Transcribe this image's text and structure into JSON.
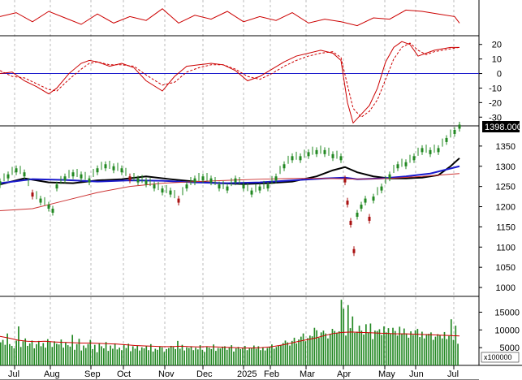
{
  "chart_data": [
    {
      "panel": "oscillator-top",
      "type": "line",
      "x": [
        0,
        20,
        40,
        60,
        80,
        100,
        120,
        140,
        160,
        180,
        200,
        220,
        240,
        260,
        280,
        300,
        320,
        340,
        360,
        380,
        400,
        420,
        440,
        460,
        480,
        500,
        520,
        540,
        560,
        566
      ],
      "series": [
        {
          "color": "#cc0000",
          "values": [
            0.55,
            0.7,
            0.35,
            0.75,
            0.5,
            0.25,
            0.65,
            0.3,
            0.55,
            0.4,
            0.85,
            0.3,
            0.6,
            0.45,
            0.75,
            0.35,
            0.55,
            0.4,
            0.7,
            0.3,
            0.45,
            0.35,
            0.2,
            0.5,
            0.45,
            0.8,
            0.75,
            0.65,
            0.55,
            0.3
          ]
        }
      ],
      "ylim": [
        0,
        1
      ]
    },
    {
      "panel": "macd",
      "type": "line",
      "x": [
        0,
        15,
        30,
        45,
        60,
        70,
        85,
        100,
        110,
        120,
        135,
        150,
        165,
        180,
        200,
        215,
        230,
        245,
        260,
        275,
        290,
        305,
        320,
        335,
        350,
        365,
        380,
        395,
        410,
        420,
        428,
        435,
        445,
        455,
        465,
        475,
        485,
        495,
        505,
        515,
        525,
        535,
        545,
        555,
        566
      ],
      "y_ticks": [
        -30,
        -20,
        -10,
        0,
        10,
        20
      ],
      "ylim": [
        -36,
        26
      ],
      "series": [
        {
          "name": "",
          "color": "#cc0000",
          "dash": "solid",
          "values": [
            0,
            1,
            -5,
            -9,
            -14,
            -10,
            0,
            7,
            9,
            8,
            5,
            7,
            4,
            -5,
            -12,
            -2,
            5,
            6,
            7,
            6,
            2,
            -5,
            -2,
            3,
            8,
            12,
            14,
            16,
            14,
            9,
            -20,
            -34,
            -28,
            -22,
            -10,
            8,
            18,
            22,
            20,
            12,
            14,
            16,
            17,
            18,
            18
          ]
        },
        {
          "name": "",
          "color": "#cc0000",
          "dash": "dashed",
          "values": [
            2,
            -2,
            -3,
            -7,
            -11,
            -12,
            -4,
            3,
            7,
            8,
            6,
            6,
            5,
            -1,
            -8,
            -6,
            1,
            4,
            6,
            6,
            3,
            -2,
            -4,
            0,
            5,
            9,
            12,
            14,
            15,
            11,
            -8,
            -24,
            -30,
            -26,
            -18,
            -4,
            10,
            18,
            21,
            16,
            13,
            15,
            16,
            17,
            18
          ]
        }
      ],
      "baseline": 0
    },
    {
      "panel": "price",
      "type": "line",
      "x_labels": [
        "Jul",
        "Aug",
        "Sep",
        "Oct",
        "Nov",
        "Dec",
        "2025",
        "Feb",
        "Mar",
        "Apr",
        "May",
        "Jun",
        "Jul"
      ],
      "y_ticks": [
        1000,
        1050,
        1100,
        1150,
        1200,
        1250,
        1300,
        1350
      ],
      "ylim": [
        978,
        1400
      ],
      "last_price_label": "1398.000",
      "last_price": 1398,
      "series": [
        {
          "name": "",
          "color": "#228822",
          "type": "ohlc",
          "x": [
            0,
            10,
            20,
            30,
            40,
            50,
            60,
            65,
            70,
            80,
            90,
            100,
            110,
            120,
            130,
            140,
            150,
            160,
            170,
            180,
            190,
            200,
            210,
            220,
            230,
            240,
            250,
            260,
            270,
            280,
            290,
            300,
            310,
            320,
            330,
            340,
            350,
            360,
            370,
            380,
            390,
            400,
            410,
            420,
            425,
            428,
            432,
            436,
            440,
            445,
            450,
            455,
            460,
            470,
            480,
            490,
            500,
            510,
            520,
            530,
            540,
            550,
            560,
            566
          ],
          "values": [
            1258,
            1275,
            1290,
            1280,
            1230,
            1215,
            1200,
            1190,
            1250,
            1270,
            1280,
            1275,
            1265,
            1290,
            1300,
            1295,
            1290,
            1270,
            1265,
            1260,
            1250,
            1240,
            1235,
            1215,
            1250,
            1265,
            1270,
            1265,
            1250,
            1245,
            1265,
            1250,
            1235,
            1245,
            1250,
            1270,
            1300,
            1320,
            1320,
            1330,
            1335,
            1335,
            1325,
            1320,
            1265,
            1210,
            1160,
            1090,
            1180,
            1200,
            1215,
            1170,
            1220,
            1245,
            1275,
            1300,
            1305,
            1320,
            1340,
            1335,
            1340,
            1365,
            1385,
            1398
          ]
        },
        {
          "name": "",
          "color": "#000000",
          "x": [
            0,
            30,
            60,
            90,
            120,
            150,
            180,
            210,
            240,
            270,
            300,
            330,
            360,
            390,
            410,
            425,
            440,
            460,
            480,
            500,
            520,
            540,
            555,
            566
          ],
          "values": [
            1255,
            1270,
            1260,
            1258,
            1265,
            1268,
            1275,
            1268,
            1262,
            1258,
            1256,
            1258,
            1262,
            1275,
            1290,
            1298,
            1285,
            1275,
            1270,
            1270,
            1272,
            1278,
            1300,
            1320
          ]
        },
        {
          "name": "",
          "color": "#1a1acc",
          "x": [
            0,
            40,
            80,
            120,
            160,
            200,
            240,
            280,
            320,
            360,
            400,
            425,
            440,
            470,
            500,
            530,
            566
          ],
          "values": [
            1258,
            1268,
            1266,
            1262,
            1265,
            1264,
            1260,
            1258,
            1260,
            1265,
            1270,
            1272,
            1268,
            1270,
            1275,
            1282,
            1300
          ]
        },
        {
          "name": "",
          "color": "#cc3333",
          "x": [
            0,
            40,
            80,
            120,
            160,
            200,
            240,
            280,
            320,
            360,
            400,
            440,
            480,
            520,
            566
          ],
          "values": [
            1190,
            1195,
            1215,
            1235,
            1250,
            1258,
            1262,
            1265,
            1268,
            1270,
            1270,
            1268,
            1270,
            1275,
            1282
          ]
        }
      ]
    },
    {
      "panel": "volume",
      "type": "bar",
      "unit_label": "x100000",
      "y_ticks": [
        5000,
        10000,
        15000
      ],
      "ylim": [
        0,
        19000
      ],
      "bar_color": "#228822",
      "values": [
        6500,
        7200,
        5800,
        9000,
        6000,
        5500,
        4800,
        7000,
        11000,
        5200,
        6800,
        7600,
        5500,
        6200,
        7000,
        4800,
        6000,
        6900,
        5400,
        6300,
        5000,
        7400,
        6600,
        5200,
        6800,
        6100,
        5900,
        7300,
        5000,
        6400,
        5700,
        5300,
        8600,
        4400,
        6000,
        7500,
        4200,
        5600,
        4900,
        6000,
        7200,
        4600,
        5800,
        3700,
        6300,
        5400,
        4800,
        6600,
        4100,
        5600,
        4700,
        6200,
        4500,
        5000,
        4300,
        5800,
        4900,
        6100,
        4000,
        5400,
        4700,
        5600,
        4200,
        5100,
        4800,
        5400,
        4300,
        6000,
        3900,
        4700,
        4400,
        5300,
        5100,
        3800,
        4600,
        4900,
        5500,
        5200,
        4600,
        6900,
        4700,
        5800,
        4200,
        5100,
        4900,
        5400,
        4300,
        5000,
        4500,
        5700,
        4400,
        3800,
        5200,
        5000,
        4600,
        5900,
        4100,
        4900,
        4800,
        5300,
        5400,
        4400,
        5100,
        5700,
        3900,
        4800,
        5200,
        4600,
        5000,
        5500,
        4300,
        4800,
        4900,
        5600,
        4700,
        5400,
        4300,
        5100,
        4200,
        4900,
        5200,
        5900,
        4700,
        5200,
        5600,
        5700,
        6300,
        7000,
        6500,
        5600,
        6900,
        7800,
        6200,
        7300,
        8100,
        9000,
        6800,
        7700,
        8400,
        8200,
        10600,
        9900,
        7800,
        9300,
        9800,
        9000,
        7600,
        8900,
        10300,
        9700,
        9200,
        9600,
        18500,
        16000,
        8400,
        17000,
        10500,
        13800,
        9200,
        9500,
        11200,
        9800,
        8700,
        11600,
        9300,
        11800,
        7400,
        9800,
        9700,
        10200,
        8600,
        11000,
        9300,
        10500,
        8900,
        10600,
        9700,
        8400,
        10900,
        9000,
        10400,
        9000,
        7800,
        9600,
        8600,
        9900,
        10300,
        8000,
        9500,
        7600,
        8800,
        8900,
        9300,
        7200,
        8100,
        8800,
        8500,
        7600,
        9400,
        7400,
        8300,
        13000,
        7200,
        11200,
        6100
      ],
      "ma_color": "#cc0000",
      "ma_values": [
        8200,
        7700,
        7100,
        6800,
        6700,
        6800,
        6600,
        6500,
        6400,
        6300,
        6300,
        6200,
        6100,
        6000,
        5800,
        5600,
        5500,
        5400,
        5300,
        5300,
        5400,
        5300,
        5200,
        5300,
        5200,
        5100,
        5000,
        4900,
        4900,
        5000,
        5200,
        5600,
        6100,
        6700,
        7200,
        7700,
        8400,
        9000,
        9300,
        9400,
        9300,
        9200,
        9100,
        9000,
        8900,
        8900,
        8800,
        8700,
        8600,
        8500,
        8400,
        8300
      ]
    }
  ]
}
